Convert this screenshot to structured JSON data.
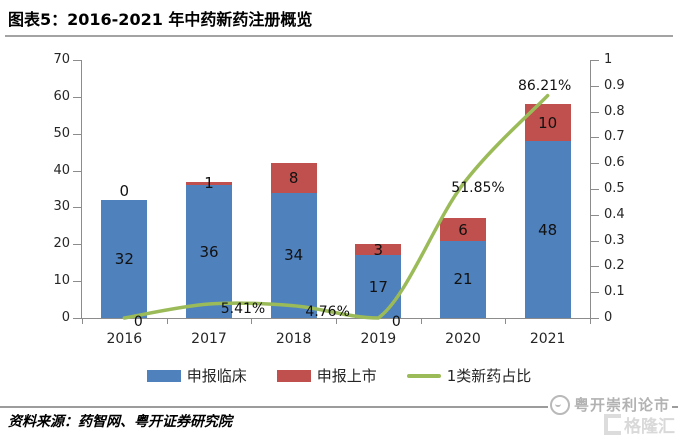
{
  "header": {
    "title": "图表5：2016-2021 年中药新药注册概览"
  },
  "chart_data": {
    "type": "bar",
    "subtype": "stacked-bars-with-line",
    "categories": [
      "2016",
      "2017",
      "2018",
      "2019",
      "2020",
      "2021"
    ],
    "series": [
      {
        "name": "申报临床",
        "type": "bar",
        "axis": "left",
        "color": "#4F81BD",
        "values": [
          32,
          36,
          34,
          17,
          21,
          48
        ]
      },
      {
        "name": "申报上市",
        "type": "bar",
        "axis": "left",
        "color": "#C0504D",
        "values": [
          0,
          1,
          8,
          3,
          6,
          10
        ]
      },
      {
        "name": "1类新药占比",
        "type": "line",
        "axis": "right",
        "color": "#9BBB59",
        "values": [
          0,
          0.0541,
          0.0476,
          0,
          0.5185,
          0.8621
        ],
        "point_labels": [
          "0",
          "5.41%",
          "4.76%",
          "0",
          "51.85%",
          "86.21%"
        ]
      }
    ],
    "left_axis": {
      "min": 0,
      "max": 70,
      "step": 10,
      "tick_labels": [
        "0",
        "10",
        "20",
        "30",
        "40",
        "50",
        "60",
        "70"
      ]
    },
    "right_axis": {
      "min": 0,
      "max": 1,
      "step": 0.1,
      "tick_labels": [
        "0",
        "0.1",
        "0.2",
        "0.3",
        "0.4",
        "0.5",
        "0.6",
        "0.7",
        "0.8",
        "0.9",
        "1"
      ]
    },
    "grid": false,
    "legend_position": "bottom"
  },
  "footer": {
    "source": "资料来源：药智网、粤开证券研究院"
  },
  "watermark": {
    "brand": "粤开崇利论市",
    "platform": "格隆汇"
  },
  "colors": {
    "bar_clinical": "#4F81BD",
    "bar_listing": "#C0504D",
    "line_ratio": "#9BBB59",
    "axis": "#8c8c8c",
    "rule": "#a3a3a3"
  }
}
